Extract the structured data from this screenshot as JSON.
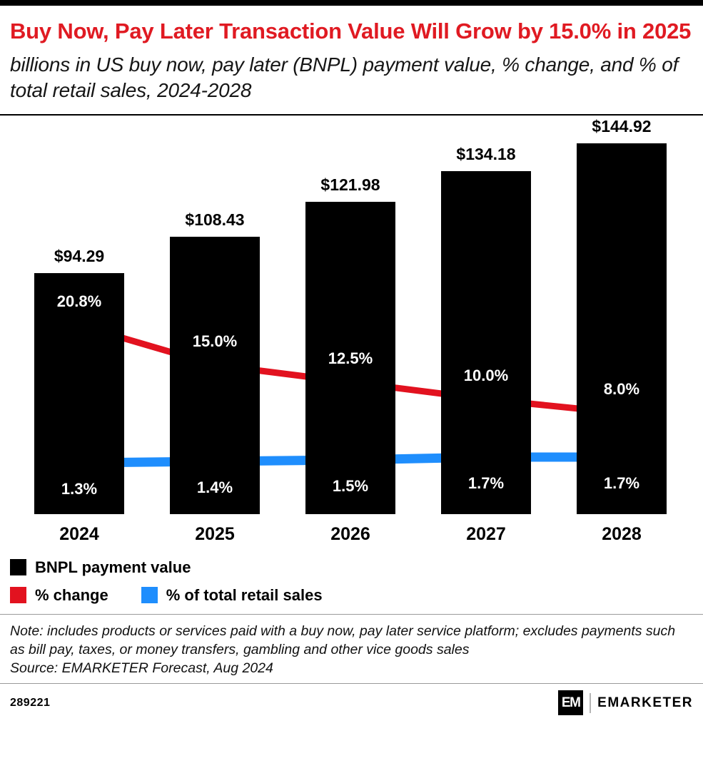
{
  "header": {
    "title": "Buy Now, Pay Later Transaction Value Will Grow by 15.0% in 2025",
    "subtitle": "billions in US buy now, pay later (BNPL) payment value, % change, and % of total retail sales, 2024-2028"
  },
  "chart_data": {
    "type": "bar",
    "categories": [
      "2024",
      "2025",
      "2026",
      "2027",
      "2028"
    ],
    "series": [
      {
        "name": "BNPL payment value",
        "type": "bar",
        "color": "#000000",
        "values": [
          94.29,
          108.43,
          121.98,
          134.18,
          144.92
        ],
        "labels": [
          "$94.29",
          "$108.43",
          "$121.98",
          "$134.18",
          "$144.92"
        ]
      },
      {
        "name": "% change",
        "type": "line",
        "color": "#e2121f",
        "values": [
          20.8,
          15.0,
          12.5,
          10.0,
          8.0
        ],
        "labels": [
          "20.8%",
          "15.0%",
          "12.5%",
          "10.0%",
          "8.0%"
        ]
      },
      {
        "name": "% of total retail sales",
        "type": "line",
        "color": "#1f8efd",
        "values": [
          1.3,
          1.4,
          1.5,
          1.7,
          1.7
        ],
        "labels": [
          "1.3%",
          "1.4%",
          "1.5%",
          "1.7%",
          "1.7%"
        ]
      }
    ],
    "ylim": [
      0,
      150
    ],
    "grid": false,
    "legend_position": "bottom"
  },
  "legend": {
    "items": [
      {
        "label": "BNPL payment value",
        "color": "#000000"
      },
      {
        "label": "% change",
        "color": "#e2121f"
      },
      {
        "label": "% of total retail sales",
        "color": "#1f8efd"
      }
    ]
  },
  "footnote": {
    "note": "Note: includes products or services paid with a buy now, pay later service platform; excludes payments such as bill pay, taxes, or money transfers, gambling and other vice goods sales",
    "source": "Source: EMARKETER Forecast, Aug 2024"
  },
  "footer": {
    "chart_id": "289221",
    "logo_text": "EM",
    "brand": "EMARKETER"
  }
}
